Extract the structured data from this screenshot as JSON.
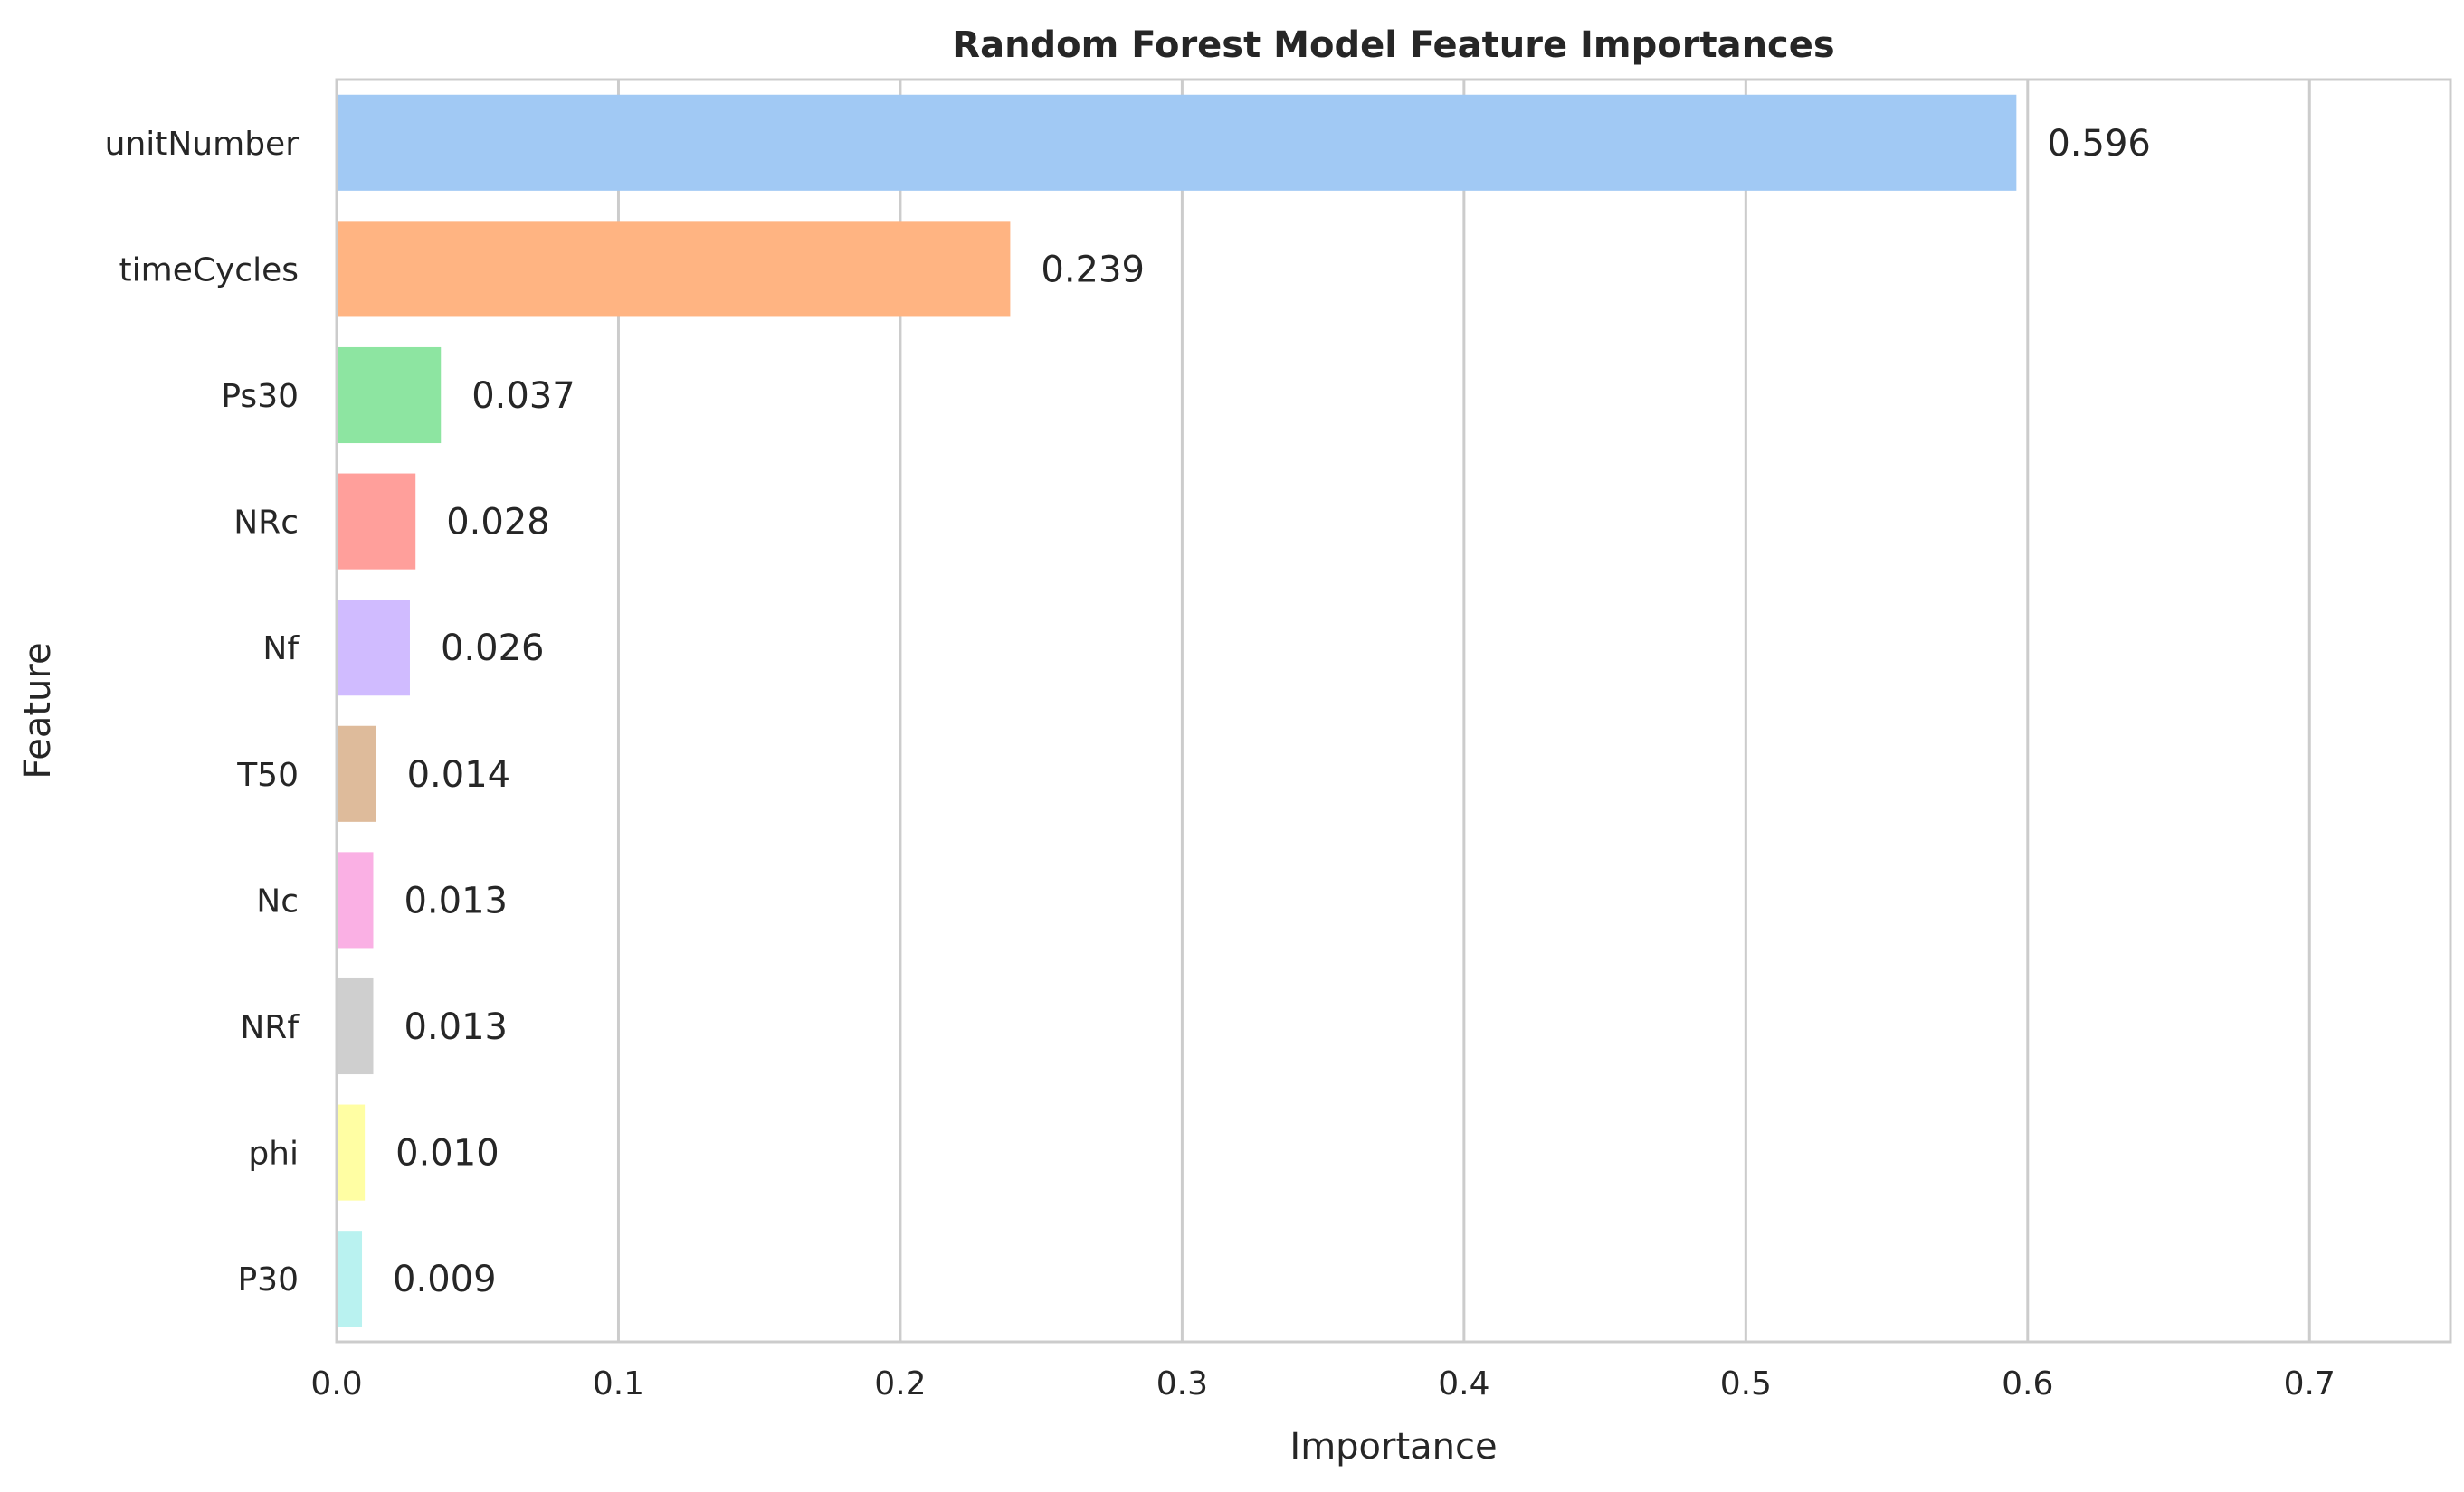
{
  "chart_data": {
    "type": "bar",
    "orientation": "horizontal",
    "title": "Random Forest Model Feature Importances",
    "xlabel": "Importance",
    "ylabel": "Feature",
    "xlim": [
      0,
      0.75
    ],
    "xticks": [
      "0.0",
      "0.1",
      "0.2",
      "0.3",
      "0.4",
      "0.5",
      "0.6",
      "0.7"
    ],
    "grid": "vertical",
    "legend": "none",
    "categories": [
      "unitNumber",
      "timeCycles",
      "Ps30",
      "NRc",
      "Nf",
      "T50",
      "Nc",
      "NRf",
      "phi",
      "P30"
    ],
    "values": [
      0.596,
      0.239,
      0.037,
      0.028,
      0.026,
      0.014,
      0.013,
      0.013,
      0.01,
      0.009
    ],
    "value_labels": [
      "0.596",
      "0.239",
      "0.037",
      "0.028",
      "0.026",
      "0.014",
      "0.013",
      "0.013",
      "0.010",
      "0.009"
    ],
    "colors": [
      "#a1c9f4",
      "#ffb482",
      "#8de5a1",
      "#ff9f9b",
      "#d0bbff",
      "#debb9b",
      "#fab0e4",
      "#cfcfcf",
      "#fffea3",
      "#b9f2f0"
    ]
  }
}
